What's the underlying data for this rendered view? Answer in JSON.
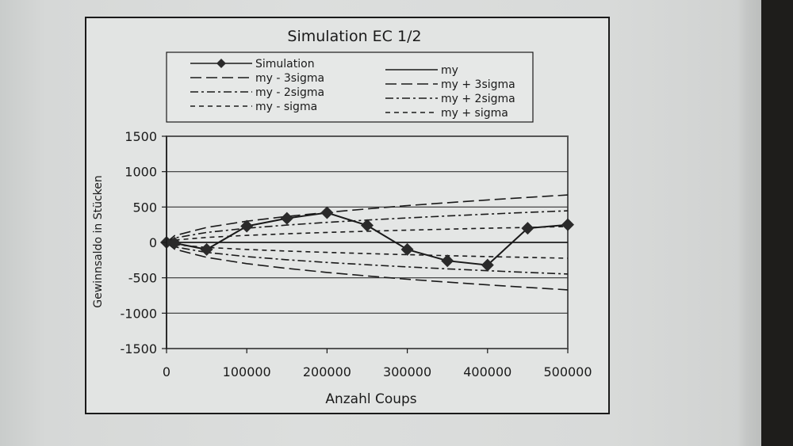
{
  "chart_data": {
    "type": "line",
    "title": "Simulation EC 1/2",
    "xlabel": "Anzahl Coups",
    "ylabel": "Gewinnsaldo in Stücken",
    "xlim": [
      0,
      500000
    ],
    "ylim": [
      -1500,
      1500
    ],
    "x_ticks": [
      "0",
      "100000",
      "200000",
      "300000",
      "400000",
      "500000"
    ],
    "y_ticks": [
      "1500",
      "1000",
      "500",
      "0",
      "-500",
      "-1000",
      "-1500"
    ],
    "grid": "horizontal",
    "legend_position": "top",
    "x": [
      0,
      10000,
      50000,
      100000,
      150000,
      200000,
      250000,
      300000,
      350000,
      400000,
      450000,
      500000
    ],
    "series": [
      {
        "name": "Simulation",
        "style": "solid-diamond",
        "values": [
          0,
          -10,
          -100,
          230,
          340,
          420,
          240,
          -100,
          -260,
          -320,
          200,
          250
        ]
      },
      {
        "name": "my",
        "style": "solid",
        "values": [
          0,
          0,
          0,
          0,
          0,
          0,
          0,
          0,
          0,
          0,
          0,
          0
        ]
      },
      {
        "name": "my - 3sigma",
        "style": "long-dash",
        "values": [
          0,
          -95,
          -212,
          -300,
          -367,
          -424,
          -474,
          -520,
          -561,
          -600,
          -636,
          -671
        ]
      },
      {
        "name": "my + 3sigma",
        "style": "long-dash",
        "values": [
          0,
          95,
          212,
          300,
          367,
          424,
          474,
          520,
          561,
          600,
          636,
          671
        ]
      },
      {
        "name": "my - 2sigma",
        "style": "dash-dot",
        "values": [
          0,
          -63,
          -141,
          -200,
          -245,
          -283,
          -316,
          -346,
          -374,
          -400,
          -424,
          -447
        ]
      },
      {
        "name": "my + 2sigma",
        "style": "dash-dot",
        "values": [
          0,
          63,
          141,
          200,
          245,
          283,
          316,
          346,
          374,
          400,
          424,
          447
        ]
      },
      {
        "name": "my - sigma",
        "style": "short-dash",
        "values": [
          0,
          -32,
          -71,
          -100,
          -122,
          -141,
          -158,
          -173,
          -187,
          -200,
          -212,
          -224
        ]
      },
      {
        "name": "my + sigma",
        "style": "short-dash",
        "values": [
          0,
          32,
          71,
          100,
          122,
          141,
          158,
          173,
          187,
          200,
          212,
          224
        ]
      }
    ],
    "legend": [
      {
        "label": "Simulation",
        "style": "solid-diamond"
      },
      {
        "label": "my",
        "style": "solid"
      },
      {
        "label": "my - 3sigma",
        "style": "long-dash"
      },
      {
        "label": "my + 3sigma",
        "style": "long-dash"
      },
      {
        "label": "my - 2sigma",
        "style": "dash-dot"
      },
      {
        "label": "my + 2sigma",
        "style": "dash-dot"
      },
      {
        "label": "my - sigma",
        "style": "short-dash"
      },
      {
        "label": "my + sigma",
        "style": "short-dash"
      }
    ]
  },
  "colors": {
    "ink": "#1a1a1a",
    "paper": "#dcdedd"
  }
}
